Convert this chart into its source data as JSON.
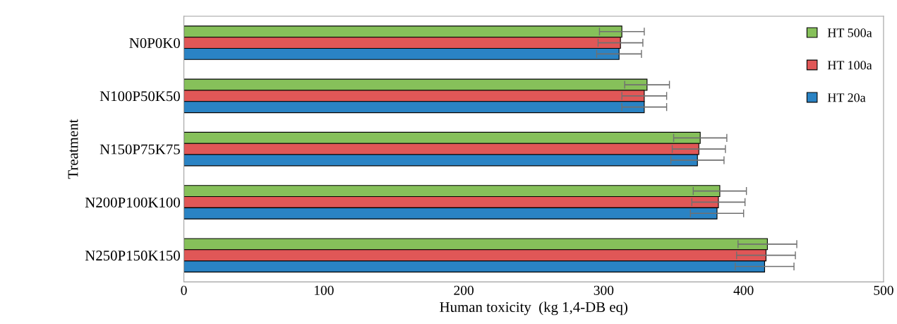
{
  "chart_data": {
    "type": "bar",
    "orientation": "horizontal",
    "xlabel": "Human toxicity  (kg 1,4-DB eq)",
    "ylabel": "Treatment",
    "categories": [
      "N0P0K0",
      "N100P50K50",
      "N150P75K75",
      "N200P100K100",
      "N250P150K150"
    ],
    "series": [
      {
        "name": "HT 500a",
        "color": "#86c05a",
        "values": [
          313,
          331,
          369,
          383,
          417
        ],
        "errors": [
          16,
          16,
          19,
          19,
          21
        ]
      },
      {
        "name": "HT 100a",
        "color": "#e05757",
        "values": [
          312,
          329,
          368,
          382,
          416
        ],
        "errors": [
          16,
          16,
          19,
          19,
          21
        ]
      },
      {
        "name": "HT 20a",
        "color": "#2a83c4",
        "values": [
          311,
          329,
          367,
          381,
          415
        ],
        "errors": [
          16,
          16,
          19,
          19,
          21
        ]
      }
    ],
    "xlim": [
      0,
      500
    ],
    "xticks": [
      0,
      100,
      200,
      300,
      400,
      500
    ],
    "grid": false,
    "legend": "top right"
  }
}
